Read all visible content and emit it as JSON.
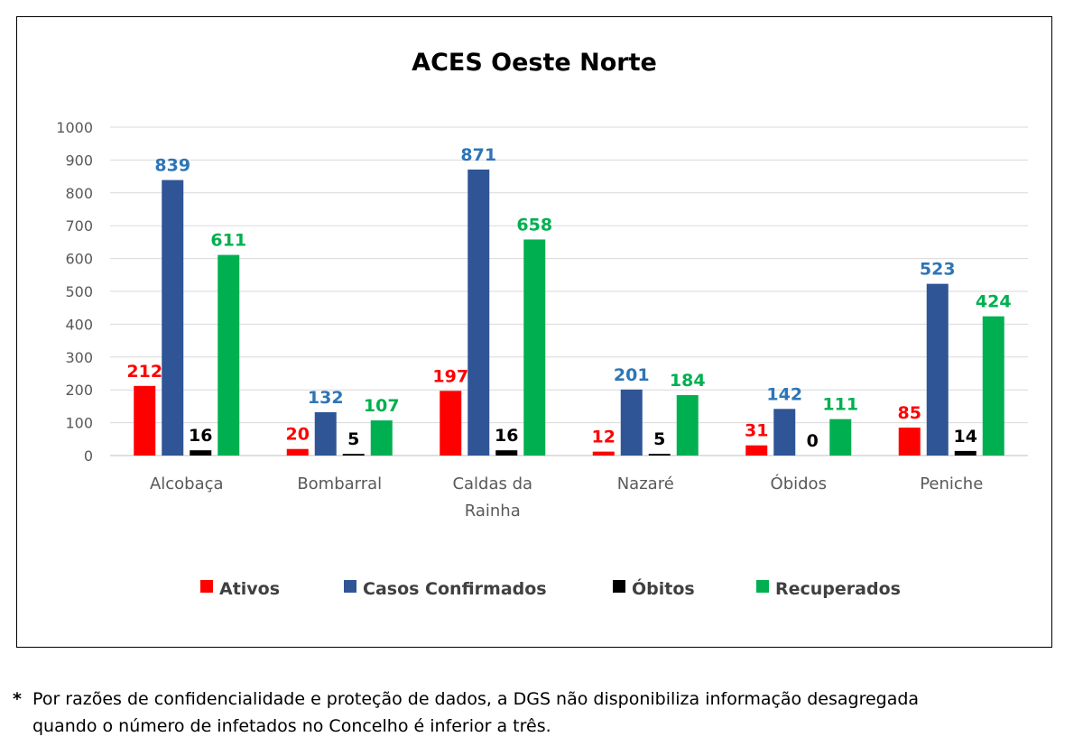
{
  "colors": {
    "Ativos": "#ff0000",
    "Casos Confirmados": "#2f5597",
    "Óbitos": "#000000",
    "Recuperados": "#00b050",
    "label_Casos Confirmados": "#2e75b6",
    "gridline": "#d9d9d9",
    "axis_text": "#595959"
  },
  "chart_data": {
    "type": "bar",
    "title": "ACES Oeste Norte",
    "categories": [
      "Alcobaça",
      "Bombarral",
      "Caldas da Rainha",
      "Nazaré",
      "Óbidos",
      "Peniche"
    ],
    "series": [
      {
        "name": "Ativos",
        "values": [
          212,
          20,
          197,
          12,
          31,
          85
        ]
      },
      {
        "name": "Casos Confirmados",
        "values": [
          839,
          132,
          871,
          201,
          142,
          523
        ]
      },
      {
        "name": "Óbitos",
        "values": [
          16,
          5,
          16,
          5,
          0,
          14
        ]
      },
      {
        "name": "Recuperados",
        "values": [
          611,
          107,
          658,
          184,
          111,
          424
        ]
      }
    ],
    "ylim": [
      0,
      1000
    ],
    "yticks": [
      0,
      100,
      200,
      300,
      400,
      500,
      600,
      700,
      800,
      900,
      1000
    ],
    "grid": true,
    "legend": "bottom",
    "xlabel": "",
    "ylabel": ""
  },
  "footnote": {
    "star": "*",
    "line1": "Por razões de confidencialidade e proteção de dados, a DGS não disponibiliza informação desagregada",
    "line2": "quando o número de infetados no Concelho é inferior a três."
  }
}
